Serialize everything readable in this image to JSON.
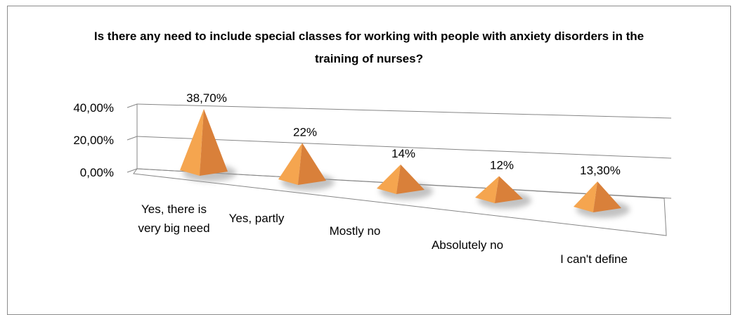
{
  "chart_data": {
    "type": "pyramid",
    "title": "Is there any need to include special classes for working with people with anxiety disorders in the training of nurses?",
    "categories": [
      "Yes, there is very big need",
      "Yes, partly",
      "Mostly no",
      "Absolutely no",
      "I can't define"
    ],
    "values": [
      38.7,
      22,
      14,
      12,
      13.3
    ],
    "value_labels": [
      "38,70%",
      "22%",
      "14%",
      "12%",
      "13,30%"
    ],
    "color": "#f5a54f",
    "ylim": [
      0,
      40
    ],
    "yticks": [
      {
        "value": 0,
        "label": "0,00%"
      },
      {
        "value": 20,
        "label": "20,00%"
      },
      {
        "value": 40,
        "label": "40,00%"
      }
    ],
    "grid": true
  }
}
